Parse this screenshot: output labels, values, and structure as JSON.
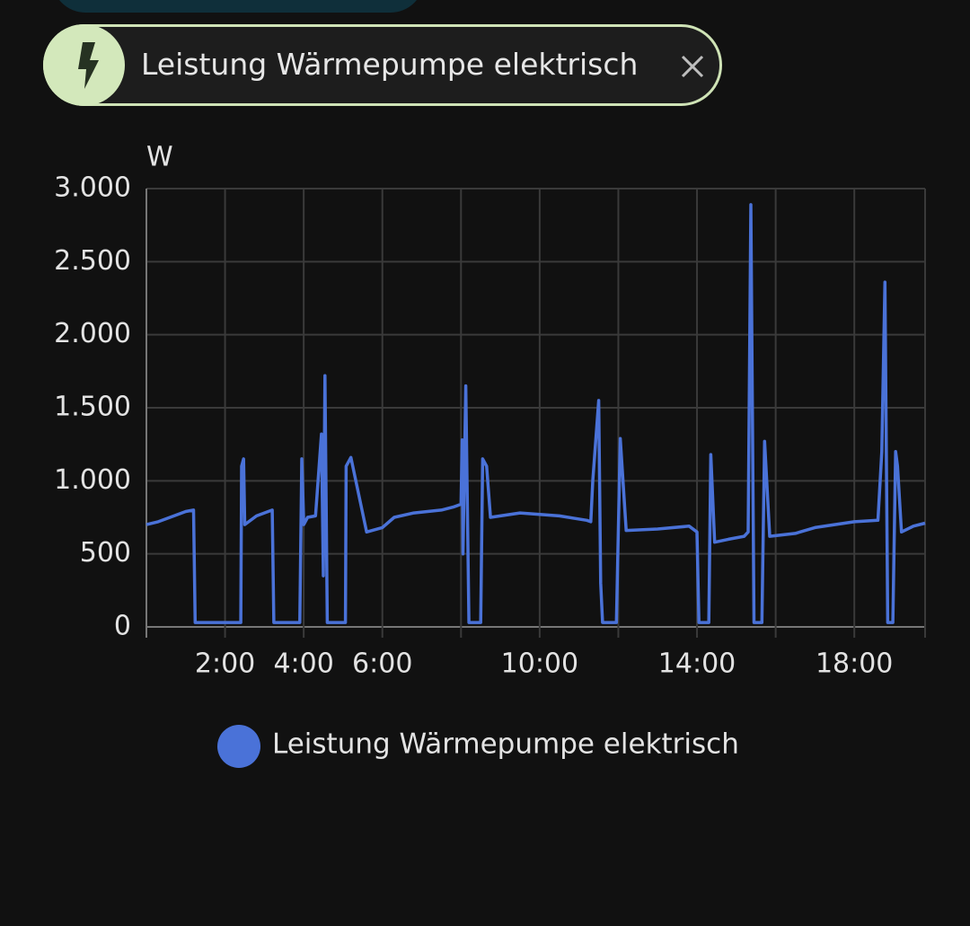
{
  "filter_chip": {
    "label": "Leistung Wärmepumpe elektrisch"
  },
  "chart_data": {
    "type": "line",
    "ylabel": "W",
    "x": [
      0,
      0.3,
      0.7,
      1.0,
      1.2,
      1.24,
      2.4,
      2.42,
      2.47,
      2.5,
      2.8,
      3.1,
      3.2,
      3.24,
      3.9,
      3.95,
      4.0,
      4.1,
      4.3,
      4.45,
      4.5,
      4.54,
      4.6,
      5.06,
      5.08,
      5.2,
      5.6,
      6.0,
      6.3,
      6.8,
      7.5,
      7.8,
      8.0,
      8.03,
      8.05,
      8.12,
      8.2,
      8.5,
      8.55,
      8.65,
      8.75,
      9.5,
      10.5,
      11.2,
      11.3,
      11.35,
      11.5,
      11.55,
      11.6,
      11.95,
      12.05,
      12.2,
      13.0,
      13.8,
      14.0,
      14.05,
      14.3,
      14.35,
      14.45,
      14.8,
      15.2,
      15.3,
      15.37,
      15.45,
      15.65,
      15.72,
      15.85,
      16.5,
      17.0,
      17.5,
      18.0,
      18.6,
      18.7,
      18.78,
      18.85,
      18.98,
      19.05,
      19.1,
      19.2,
      19.5,
      19.8
    ],
    "series": [
      {
        "name": "Leistung Wärmepumpe elektrisch",
        "color": "#4a72d8",
        "values": [
          700,
          720,
          760,
          790,
          800,
          30,
          30,
          1100,
          1150,
          700,
          760,
          790,
          800,
          30,
          30,
          1150,
          700,
          750,
          760,
          1320,
          350,
          1720,
          30,
          30,
          1100,
          1160,
          650,
          680,
          750,
          780,
          800,
          820,
          840,
          1280,
          500,
          1650,
          30,
          30,
          1150,
          1100,
          750,
          780,
          760,
          730,
          720,
          1000,
          1550,
          300,
          30,
          30,
          1290,
          660,
          670,
          690,
          650,
          30,
          30,
          1180,
          580,
          600,
          620,
          650,
          2890,
          30,
          30,
          1270,
          620,
          640,
          680,
          700,
          720,
          730,
          1200,
          2360,
          30,
          30,
          1200,
          1100,
          650,
          690,
          710
        ]
      }
    ],
    "xlim": [
      0,
      19.8
    ],
    "xticks": [
      {
        "value": 2,
        "label": "2:00"
      },
      {
        "value": 4,
        "label": "4:00"
      },
      {
        "value": 6,
        "label": "6:00"
      },
      {
        "value": 8,
        "label": null
      },
      {
        "value": 10,
        "label": "10:00"
      },
      {
        "value": 12,
        "label": null
      },
      {
        "value": 14,
        "label": "14:00"
      },
      {
        "value": 16,
        "label": null
      },
      {
        "value": 18,
        "label": "18:00"
      }
    ],
    "ylim": [
      0,
      3000
    ],
    "yticks": [
      0,
      500,
      {
        "value": 1000,
        "label": "1.000"
      },
      {
        "value": 1500,
        "label": "1.500"
      },
      {
        "value": 2000,
        "label": "2.000"
      },
      {
        "value": 2500,
        "label": "2.500"
      },
      {
        "value": 3000,
        "label": "3.000"
      }
    ],
    "grid": true
  }
}
